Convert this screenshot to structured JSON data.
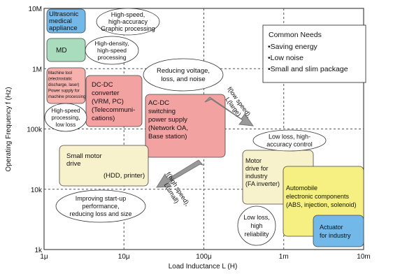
{
  "axes": {
    "x_label": "Load Inductance   L   (H)",
    "x_ticks": [
      "1μ",
      "10μ",
      "100μ",
      "1m",
      "10m"
    ],
    "y_label": "Operating Frequency   f   (Hz)",
    "y_ticks": [
      "1k",
      "10k",
      "100k",
      "1M",
      "10M"
    ]
  },
  "regions": [
    {
      "lines": [
        "Ultrasonic",
        "medical",
        "appliance"
      ]
    },
    {
      "lines": [
        "MD"
      ]
    },
    {
      "lines": [
        "Machine tool",
        "(electrostatic",
        "discharge, laser)",
        "Power supply for",
        "machine processing"
      ]
    },
    {
      "lines": [
        "DC-DC",
        "converter",
        "(VRM, PC)",
        "(Telecommuni-",
        "cations)"
      ]
    },
    {
      "lines": [
        "AC-DC",
        "switching",
        "power supply",
        "(Network OA,",
        "Base station)"
      ]
    },
    {
      "lines": [
        "Small motor",
        "drive",
        "(HDD, printer)"
      ]
    },
    {
      "lines": [
        "Motor",
        "drive for",
        "industry",
        "(FA inverter)"
      ]
    },
    {
      "lines": [
        "Automobile",
        "electronic components",
        "(ABS, injection, solenoid)"
      ]
    },
    {
      "lines": [
        "Actuator",
        "for industry"
      ]
    }
  ],
  "annotations": [
    {
      "lines": [
        "High-speed,",
        "high-accuracy",
        "Graphic processing"
      ]
    },
    {
      "lines": [
        "High-density,",
        "high-speed",
        "processing"
      ]
    },
    {
      "lines": [
        "High-speed",
        "processing,",
        "low loss"
      ]
    },
    {
      "lines": [
        "Reducing voltage,",
        "loss, and noise"
      ]
    },
    {
      "lines": [
        "Low loss, high-",
        "accuracy control"
      ]
    },
    {
      "lines": [
        "Improving start-up",
        "performance,",
        "reducing loss and size"
      ]
    },
    {
      "lines": [
        "Low loss,",
        "high",
        "reliability"
      ]
    }
  ],
  "arrows": [
    {
      "lines": [
        "f(low speed),",
        "L(large)"
      ]
    },
    {
      "lines": [
        "f(high speed),",
        "L(small)"
      ]
    }
  ],
  "needs": {
    "title": "Common Needs",
    "items": [
      "•Saving energy",
      "•Low noise",
      "•Small and slim package"
    ]
  }
}
